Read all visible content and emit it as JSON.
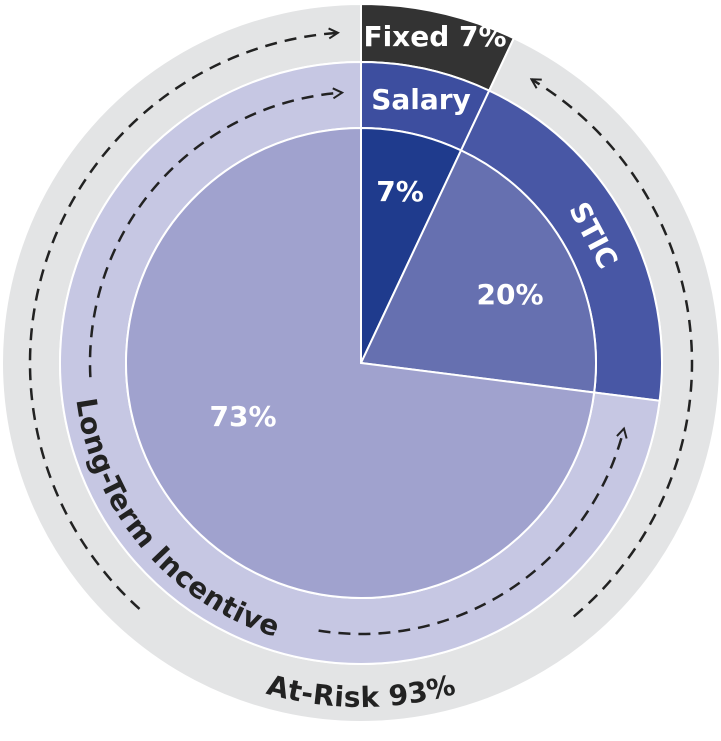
{
  "chart_data": {
    "type": "pie",
    "rings": [
      {
        "labels": [
          "Fixed 7%",
          "At-Risk 93%"
        ],
        "values": [
          7,
          93
        ],
        "colors": [
          "#333333",
          "#e3e4e5"
        ]
      },
      {
        "labels": [
          "Salary",
          "STIC",
          "Long-Term Incentive"
        ],
        "values": [
          7,
          20,
          73
        ],
        "colors": [
          "#3d4e9f",
          "#4857a5",
          "#c6c7e3"
        ]
      },
      {
        "values": [
          7,
          20,
          73
        ],
        "value_labels": [
          "7%",
          "20%",
          "73%"
        ],
        "colors": [
          "#1f3b8d",
          "#6670b0",
          "#a0a2ce"
        ]
      }
    ]
  }
}
